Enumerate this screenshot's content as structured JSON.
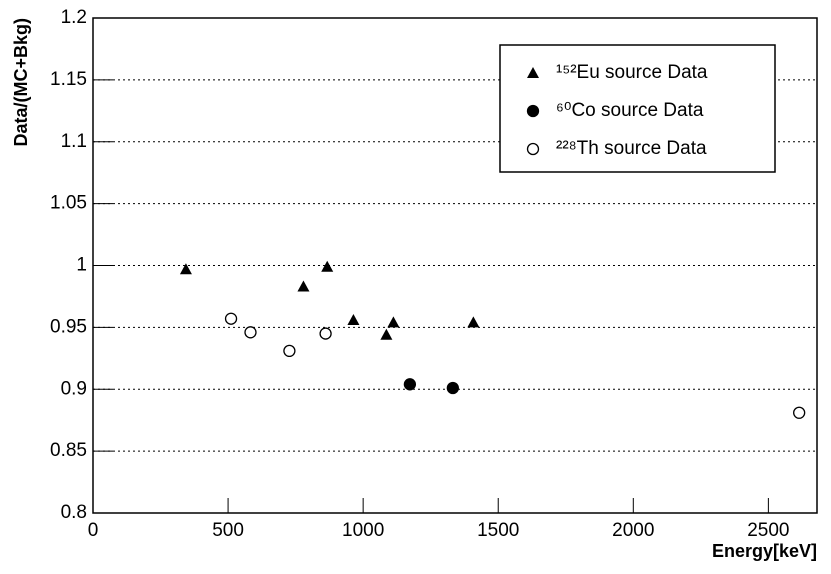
{
  "chart_data": {
    "type": "scatter",
    "x_label": "Energy[keV]",
    "y_label": "Data/(MC+Bkg)",
    "xlim": [
      0,
      2680
    ],
    "ylim": [
      0.8,
      1.2
    ],
    "xticks": [
      0,
      500,
      1000,
      1500,
      2000,
      2500
    ],
    "yticks": [
      0.8,
      0.85,
      0.9,
      0.95,
      1,
      1.05,
      1.1,
      1.15,
      1.2
    ],
    "grid": true,
    "legend": "top-right",
    "series": [
      {
        "name": "¹⁵²Eu source Data",
        "color": "#000000",
        "marker": "triangle",
        "x": [
          344,
          779,
          867,
          964,
          1086,
          1112,
          1408
        ],
        "values": [
          0.997,
          0.983,
          0.999,
          0.956,
          0.944,
          0.954,
          0.954
        ]
      },
      {
        "name": "⁶⁰Co source Data",
        "color": "#000000",
        "marker": "filled-circle",
        "x": [
          1173,
          1332
        ],
        "values": [
          0.904,
          0.901
        ]
      },
      {
        "name": "²²⁸Th source Data",
        "color": "#000000",
        "marker": "open-circle",
        "x": [
          511,
          583,
          727,
          861,
          2614
        ],
        "values": [
          0.957,
          0.946,
          0.931,
          0.945,
          0.881
        ]
      }
    ]
  }
}
